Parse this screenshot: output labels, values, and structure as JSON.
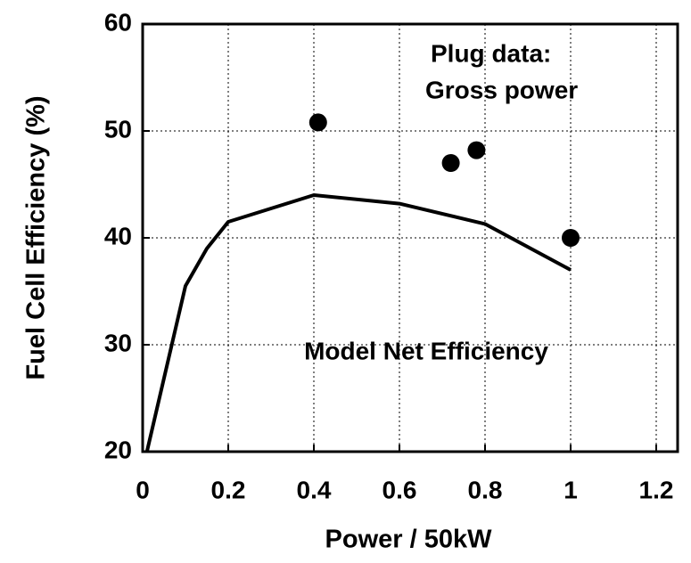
{
  "chart_data": {
    "type": "line",
    "xlabel": "Power / 50kW",
    "ylabel": "Fuel Cell Efficiency (%)",
    "xlim": [
      0,
      1.25
    ],
    "xticks": [
      0,
      0.2,
      0.4,
      0.6,
      0.8,
      1,
      1.2
    ],
    "ylim": [
      20,
      60
    ],
    "yticks": [
      20,
      30,
      40,
      50,
      60
    ],
    "grid": true,
    "annotations": [
      "Plug data:",
      "Gross power",
      "Model Net Efficiency"
    ],
    "series": [
      {
        "type": "line",
        "color": "#000000",
        "x": [
          0.01,
          0.1,
          0.15,
          0.2,
          0.4,
          0.6,
          0.8,
          1.0
        ],
        "values": [
          20,
          35.5,
          39,
          41.5,
          44,
          43.2,
          41.3,
          37
        ]
      },
      {
        "type": "scatter",
        "color": "#000000",
        "x": [
          0.41,
          0.72,
          0.78,
          1.0
        ],
        "values": [
          50.8,
          47,
          48.2,
          40
        ]
      }
    ]
  }
}
